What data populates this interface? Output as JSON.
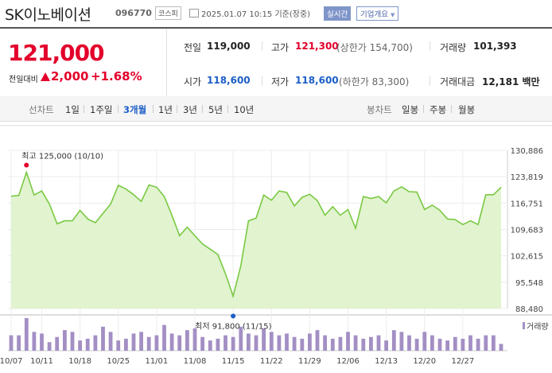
{
  "stock": {
    "name": "SK이노베이션",
    "code": "096770",
    "market": "코스피",
    "datetime": "2025.01.07 10:15",
    "basis": "기준(장중)",
    "realtime_label": "실시간",
    "company_label": "기업개요"
  },
  "quote": {
    "price": "121,000",
    "diff_label": "전일대비",
    "diff": "2,000",
    "diff_pct": "+1.68%",
    "prev_label": "전일",
    "prev": "119,000",
    "high_label": "고가",
    "high": "121,300",
    "upper_limit": "(상한가 154,700)",
    "volume_label": "거래량",
    "volume": "101,393",
    "open_label": "시가",
    "open": "118,600",
    "low_label": "저가",
    "low": "118,600",
    "lower_limit": "(하한가 83,300)",
    "amount_label": "거래대금",
    "amount": "12,181 백만"
  },
  "tabs": {
    "line_label": "선차트",
    "line_items": [
      "1일",
      "1주일",
      "3개월",
      "1년",
      "3년",
      "5년",
      "10년"
    ],
    "selected": "3개월",
    "candle_label": "봉차트",
    "candle_items": [
      "일봉",
      "주봉",
      "월봉"
    ]
  },
  "chart_data": {
    "type": "area",
    "y_ticks": [
      "130,886",
      "123,819",
      "116,751",
      "109,683",
      "102,615",
      "95,548",
      "88,480"
    ],
    "ylim": [
      88480,
      130886
    ],
    "x_ticks": [
      "10/07",
      "10/11",
      "10/18",
      "10/25",
      "11/01",
      "11/08",
      "11/15",
      "11/22",
      "11/29",
      "12/06",
      "12/13",
      "12/20",
      "12/27"
    ],
    "x_tick_index": [
      0,
      4,
      9,
      14,
      19,
      24,
      29,
      34,
      39,
      44,
      49,
      54,
      59
    ],
    "close": [
      118600,
      118800,
      125000,
      118900,
      120000,
      116500,
      111200,
      112000,
      112000,
      114800,
      112500,
      111500,
      114000,
      116500,
      121500,
      120500,
      119000,
      117200,
      121600,
      121000,
      118500,
      113500,
      108000,
      110300,
      108000,
      105800,
      104400,
      103000,
      97800,
      91800,
      100000,
      112000,
      112700,
      118900,
      117500,
      120000,
      119600,
      116000,
      118300,
      119100,
      117400,
      113500,
      115800,
      113500,
      115000,
      110000,
      118500,
      118000,
      118500,
      116800,
      120000,
      121100,
      119800,
      119700,
      115000,
      116200,
      114800,
      112500,
      112300,
      111000,
      112000,
      111000,
      119000,
      119000,
      121000
    ],
    "volume_unit": "거래량",
    "volume": [
      45,
      45,
      95,
      55,
      50,
      25,
      40,
      60,
      55,
      30,
      35,
      45,
      70,
      55,
      30,
      35,
      50,
      55,
      40,
      45,
      75,
      50,
      45,
      60,
      65,
      40,
      30,
      35,
      45,
      40,
      70,
      50,
      45,
      65,
      55,
      45,
      50,
      40,
      35,
      50,
      60,
      45,
      35,
      40,
      55,
      45,
      35,
      40,
      45,
      30,
      60,
      55,
      45,
      35,
      55,
      45,
      35,
      30,
      40,
      35,
      45,
      35,
      45,
      45,
      20
    ],
    "max_label": "최고 125,000 (10/10)",
    "max_index": 2,
    "max_value": 125000,
    "min_label": "최저 91,800 (11/15)",
    "min_index": 29,
    "min_value": 91800,
    "colors": {
      "line": "#7ac943",
      "fill": "#e1f3cf",
      "volume": "#a38fc4",
      "max": "#e3002b",
      "min": "#1c5ec7"
    }
  }
}
